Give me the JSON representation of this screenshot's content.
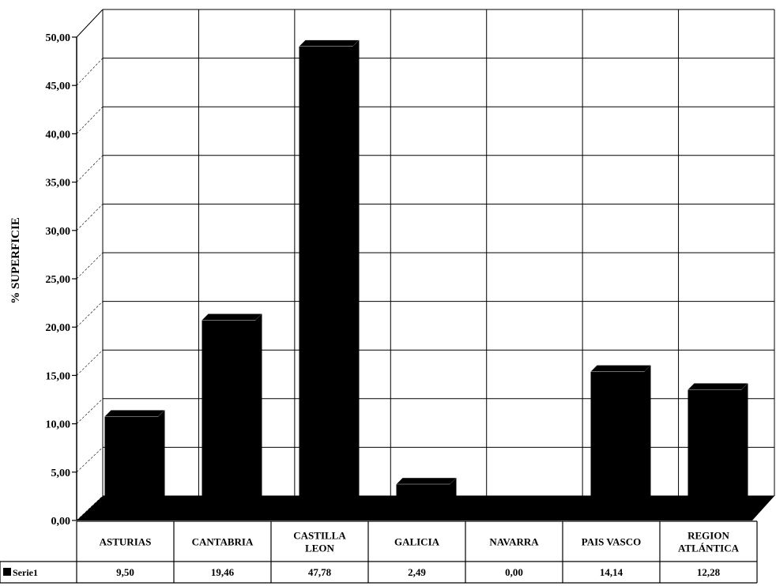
{
  "chart_data": {
    "type": "bar",
    "categories": [
      "ASTURIAS",
      "CANTABRIA",
      "CASTILLA LEON",
      "GALICIA",
      "NAVARRA",
      "PAIS VASCO",
      "REGION ATLÁNTICA"
    ],
    "category_lines": [
      [
        "ASTURIAS"
      ],
      [
        "CANTABRIA"
      ],
      [
        "CASTILLA",
        "LEON"
      ],
      [
        "GALICIA"
      ],
      [
        "NAVARRA"
      ],
      [
        "PAIS VASCO"
      ],
      [
        "REGION",
        "ATLÁNTICA"
      ]
    ],
    "series": [
      {
        "name": "Serie1",
        "values": [
          9.5,
          19.46,
          47.78,
          2.49,
          0.0,
          14.14,
          12.28
        ],
        "value_labels": [
          "9,50",
          "19,46",
          "47,78",
          "2,49",
          "0,00",
          "14,14",
          "12,28"
        ]
      }
    ],
    "ylabel": "% SUPERFICIE",
    "ylim": [
      0,
      50
    ],
    "yticks": [
      "0,00",
      "5,00",
      "10,00",
      "15,00",
      "20,00",
      "25,00",
      "30,00",
      "35,00",
      "40,00",
      "45,00",
      "50,00"
    ],
    "grid": true,
    "data_table": true,
    "legend_key_color": "#000000",
    "bar_color": "#000000"
  }
}
